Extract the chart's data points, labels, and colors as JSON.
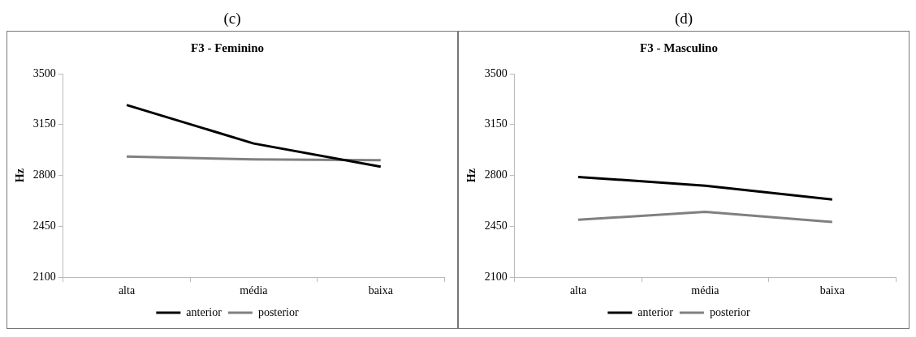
{
  "chart_data": [
    {
      "type": "line",
      "annotations": [
        "(c)"
      ],
      "title": "F3 - Feminino",
      "ylabel": "Hz",
      "categories": [
        "alta",
        "média",
        "baixa"
      ],
      "series": [
        {
          "name": "anterior",
          "color": "#000000",
          "values": [
            3285,
            3020,
            2860
          ]
        },
        {
          "name": "posterior",
          "color": "#808080",
          "values": [
            2930,
            2910,
            2905
          ]
        }
      ],
      "ylim": [
        2100,
        3500
      ],
      "yticks": [
        2100,
        2450,
        2800,
        3150,
        3500
      ],
      "grid": false,
      "legend": "bottom",
      "marker": "none"
    },
    {
      "type": "line",
      "annotations": [
        "(d)"
      ],
      "title": "F3 - Masculino",
      "ylabel": "Hz",
      "categories": [
        "alta",
        "média",
        "baixa"
      ],
      "series": [
        {
          "name": "anterior",
          "color": "#000000",
          "values": [
            2790,
            2730,
            2635
          ]
        },
        {
          "name": "posterior",
          "color": "#808080",
          "values": [
            2495,
            2550,
            2480
          ]
        }
      ],
      "ylim": [
        2100,
        3500
      ],
      "yticks": [
        2100,
        2450,
        2800,
        3150,
        3500
      ],
      "grid": false,
      "legend": "bottom",
      "marker": "none"
    }
  ]
}
